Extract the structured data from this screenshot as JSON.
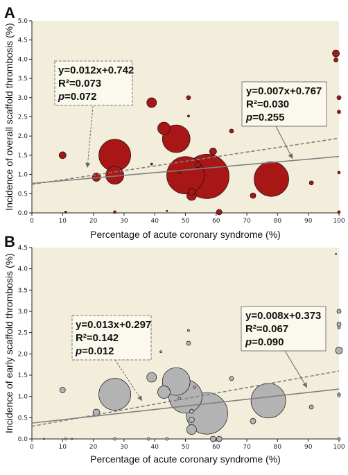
{
  "colors": {
    "panel_bg": "#f3eedb",
    "bubble_a": "#a81616",
    "bubble_b": "#b3b3b3",
    "line": "#808080",
    "box_bg": "#fbf9ee"
  },
  "chart_data": [
    {
      "panel": "A",
      "type": "scatter",
      "xlabel": "Percentage of acute coronary syndrome (%)",
      "ylabel": "Incidence of overall scaffold thrombosis (%)",
      "xlim": [
        0,
        100
      ],
      "ylim": [
        0,
        5
      ],
      "xticks": [
        0,
        10,
        20,
        30,
        40,
        50,
        60,
        70,
        80,
        90,
        100
      ],
      "yticks": [
        "0.0",
        "0.5",
        "1.0",
        "1.5",
        "2.0",
        "2.5",
        "3.0",
        "3.5",
        "4.0",
        "4.5",
        "5.0"
      ],
      "grid": false,
      "points": [
        {
          "x": 10,
          "y": 1.5,
          "r": 5
        },
        {
          "x": 11,
          "y": 0.02,
          "r": 1.5
        },
        {
          "x": 21,
          "y": 0.93,
          "r": 6
        },
        {
          "x": 27,
          "y": 1.5,
          "r": 23
        },
        {
          "x": 27,
          "y": 0.98,
          "r": 13
        },
        {
          "x": 27,
          "y": 0.02,
          "r": 2
        },
        {
          "x": 39,
          "y": 2.87,
          "r": 7
        },
        {
          "x": 39,
          "y": 1.27,
          "r": 1.5
        },
        {
          "x": 43,
          "y": 2.2,
          "r": 9
        },
        {
          "x": 44,
          "y": 0.05,
          "r": 1
        },
        {
          "x": 47,
          "y": 1.93,
          "r": 20
        },
        {
          "x": 48,
          "y": 1.05,
          "r": 2
        },
        {
          "x": 50,
          "y": 0.98,
          "r": 27
        },
        {
          "x": 51,
          "y": 3.0,
          "r": 3
        },
        {
          "x": 51,
          "y": 2.52,
          "r": 1.5
        },
        {
          "x": 52,
          "y": 0.55,
          "r": 5
        },
        {
          "x": 52,
          "y": 0.45,
          "r": 7
        },
        {
          "x": 54,
          "y": 1.25,
          "r": 4
        },
        {
          "x": 57,
          "y": 0.95,
          "r": 32
        },
        {
          "x": 59,
          "y": 1.6,
          "r": 5
        },
        {
          "x": 61,
          "y": 0.02,
          "r": 4
        },
        {
          "x": 65,
          "y": 2.13,
          "r": 3
        },
        {
          "x": 72,
          "y": 0.45,
          "r": 4
        },
        {
          "x": 78,
          "y": 0.88,
          "r": 25
        },
        {
          "x": 91,
          "y": 0.78,
          "r": 3
        },
        {
          "x": 99,
          "y": 4.15,
          "r": 5
        },
        {
          "x": 99,
          "y": 3.98,
          "r": 3
        },
        {
          "x": 100,
          "y": 3.0,
          "r": 3
        },
        {
          "x": 100,
          "y": 2.63,
          "r": 2.5
        },
        {
          "x": 100,
          "y": 1.05,
          "r": 2
        },
        {
          "x": 100,
          "y": 0.02,
          "r": 2
        }
      ],
      "lines": [
        {
          "style": "dashed",
          "slope": 0.012,
          "intercept": 0.742
        },
        {
          "style": "solid",
          "slope": 0.007,
          "intercept": 0.767
        }
      ],
      "annotations": [
        {
          "style": "dashed",
          "eq": "y=0.012x+0.742",
          "r2": "R²=0.073",
          "p_label": "p",
          "p_value": "=0.072"
        },
        {
          "style": "solid",
          "eq": "y=0.007x+0.767",
          "r2": "R²=0.030",
          "p_label": "p",
          "p_value": "=0.255"
        }
      ]
    },
    {
      "panel": "B",
      "type": "scatter",
      "xlabel": "Percentage of acute coronary syndrome (%)",
      "ylabel": "Incidence of early scaffold thrombosis (%)",
      "xlim": [
        0,
        100
      ],
      "ylim": [
        0,
        4.5
      ],
      "xticks": [
        0,
        10,
        20,
        30,
        40,
        50,
        60,
        70,
        80,
        90,
        100
      ],
      "yticks": [
        "0.0",
        "0.5",
        "1.0",
        "1.5",
        "2.0",
        "2.5",
        "3.0",
        "3.5",
        "4.0",
        "4.5"
      ],
      "grid": false,
      "points": [
        {
          "x": 4,
          "y": 0.0,
          "r": 1
        },
        {
          "x": 10,
          "y": 1.15,
          "r": 4
        },
        {
          "x": 11,
          "y": 0.0,
          "r": 1.5
        },
        {
          "x": 13,
          "y": 0.0,
          "r": 1
        },
        {
          "x": 21,
          "y": 0.62,
          "r": 5
        },
        {
          "x": 27,
          "y": 1.05,
          "r": 23
        },
        {
          "x": 27,
          "y": 0.0,
          "r": 2
        },
        {
          "x": 38,
          "y": 0.0,
          "r": 2
        },
        {
          "x": 39,
          "y": 1.45,
          "r": 7
        },
        {
          "x": 42,
          "y": 2.05,
          "r": 1.5
        },
        {
          "x": 43,
          "y": 1.1,
          "r": 9
        },
        {
          "x": 44,
          "y": 0.0,
          "r": 2
        },
        {
          "x": 47,
          "y": 1.35,
          "r": 20
        },
        {
          "x": 48,
          "y": 0.95,
          "r": 2
        },
        {
          "x": 50,
          "y": 1.0,
          "r": 24
        },
        {
          "x": 51,
          "y": 2.25,
          "r": 3
        },
        {
          "x": 51,
          "y": 2.55,
          "r": 1.5
        },
        {
          "x": 52,
          "y": 0.65,
          "r": 3
        },
        {
          "x": 52,
          "y": 0.45,
          "r": 4
        },
        {
          "x": 52,
          "y": 0.22,
          "r": 7
        },
        {
          "x": 53,
          "y": 1.22,
          "r": 2
        },
        {
          "x": 57,
          "y": 0.6,
          "r": 30
        },
        {
          "x": 59,
          "y": 0.0,
          "r": 4
        },
        {
          "x": 61,
          "y": 0.0,
          "r": 4
        },
        {
          "x": 65,
          "y": 1.42,
          "r": 3
        },
        {
          "x": 72,
          "y": 0.42,
          "r": 4
        },
        {
          "x": 77,
          "y": 0.9,
          "r": 25
        },
        {
          "x": 91,
          "y": 0.75,
          "r": 3
        },
        {
          "x": 99,
          "y": 4.35,
          "r": 1
        },
        {
          "x": 100,
          "y": 3.0,
          "r": 3
        },
        {
          "x": 100,
          "y": 2.7,
          "r": 3
        },
        {
          "x": 100,
          "y": 2.62,
          "r": 2
        },
        {
          "x": 100,
          "y": 2.08,
          "r": 5
        },
        {
          "x": 100,
          "y": 1.05,
          "r": 2
        },
        {
          "x": 100,
          "y": 1.02,
          "r": 2
        },
        {
          "x": 100,
          "y": 0.0,
          "r": 2
        }
      ],
      "lines": [
        {
          "style": "dashed",
          "slope": 0.013,
          "intercept": 0.297
        },
        {
          "style": "solid",
          "slope": 0.008,
          "intercept": 0.373
        }
      ],
      "annotations": [
        {
          "style": "dashed",
          "eq": "y=0.013x+0.297",
          "r2": "R²=0.142",
          "p_label": "p",
          "p_value": "=0.012"
        },
        {
          "style": "solid",
          "eq": "y=0.008x+0.373",
          "r2": "R²=0.067",
          "p_label": "p",
          "p_value": "=0.090"
        }
      ]
    }
  ]
}
